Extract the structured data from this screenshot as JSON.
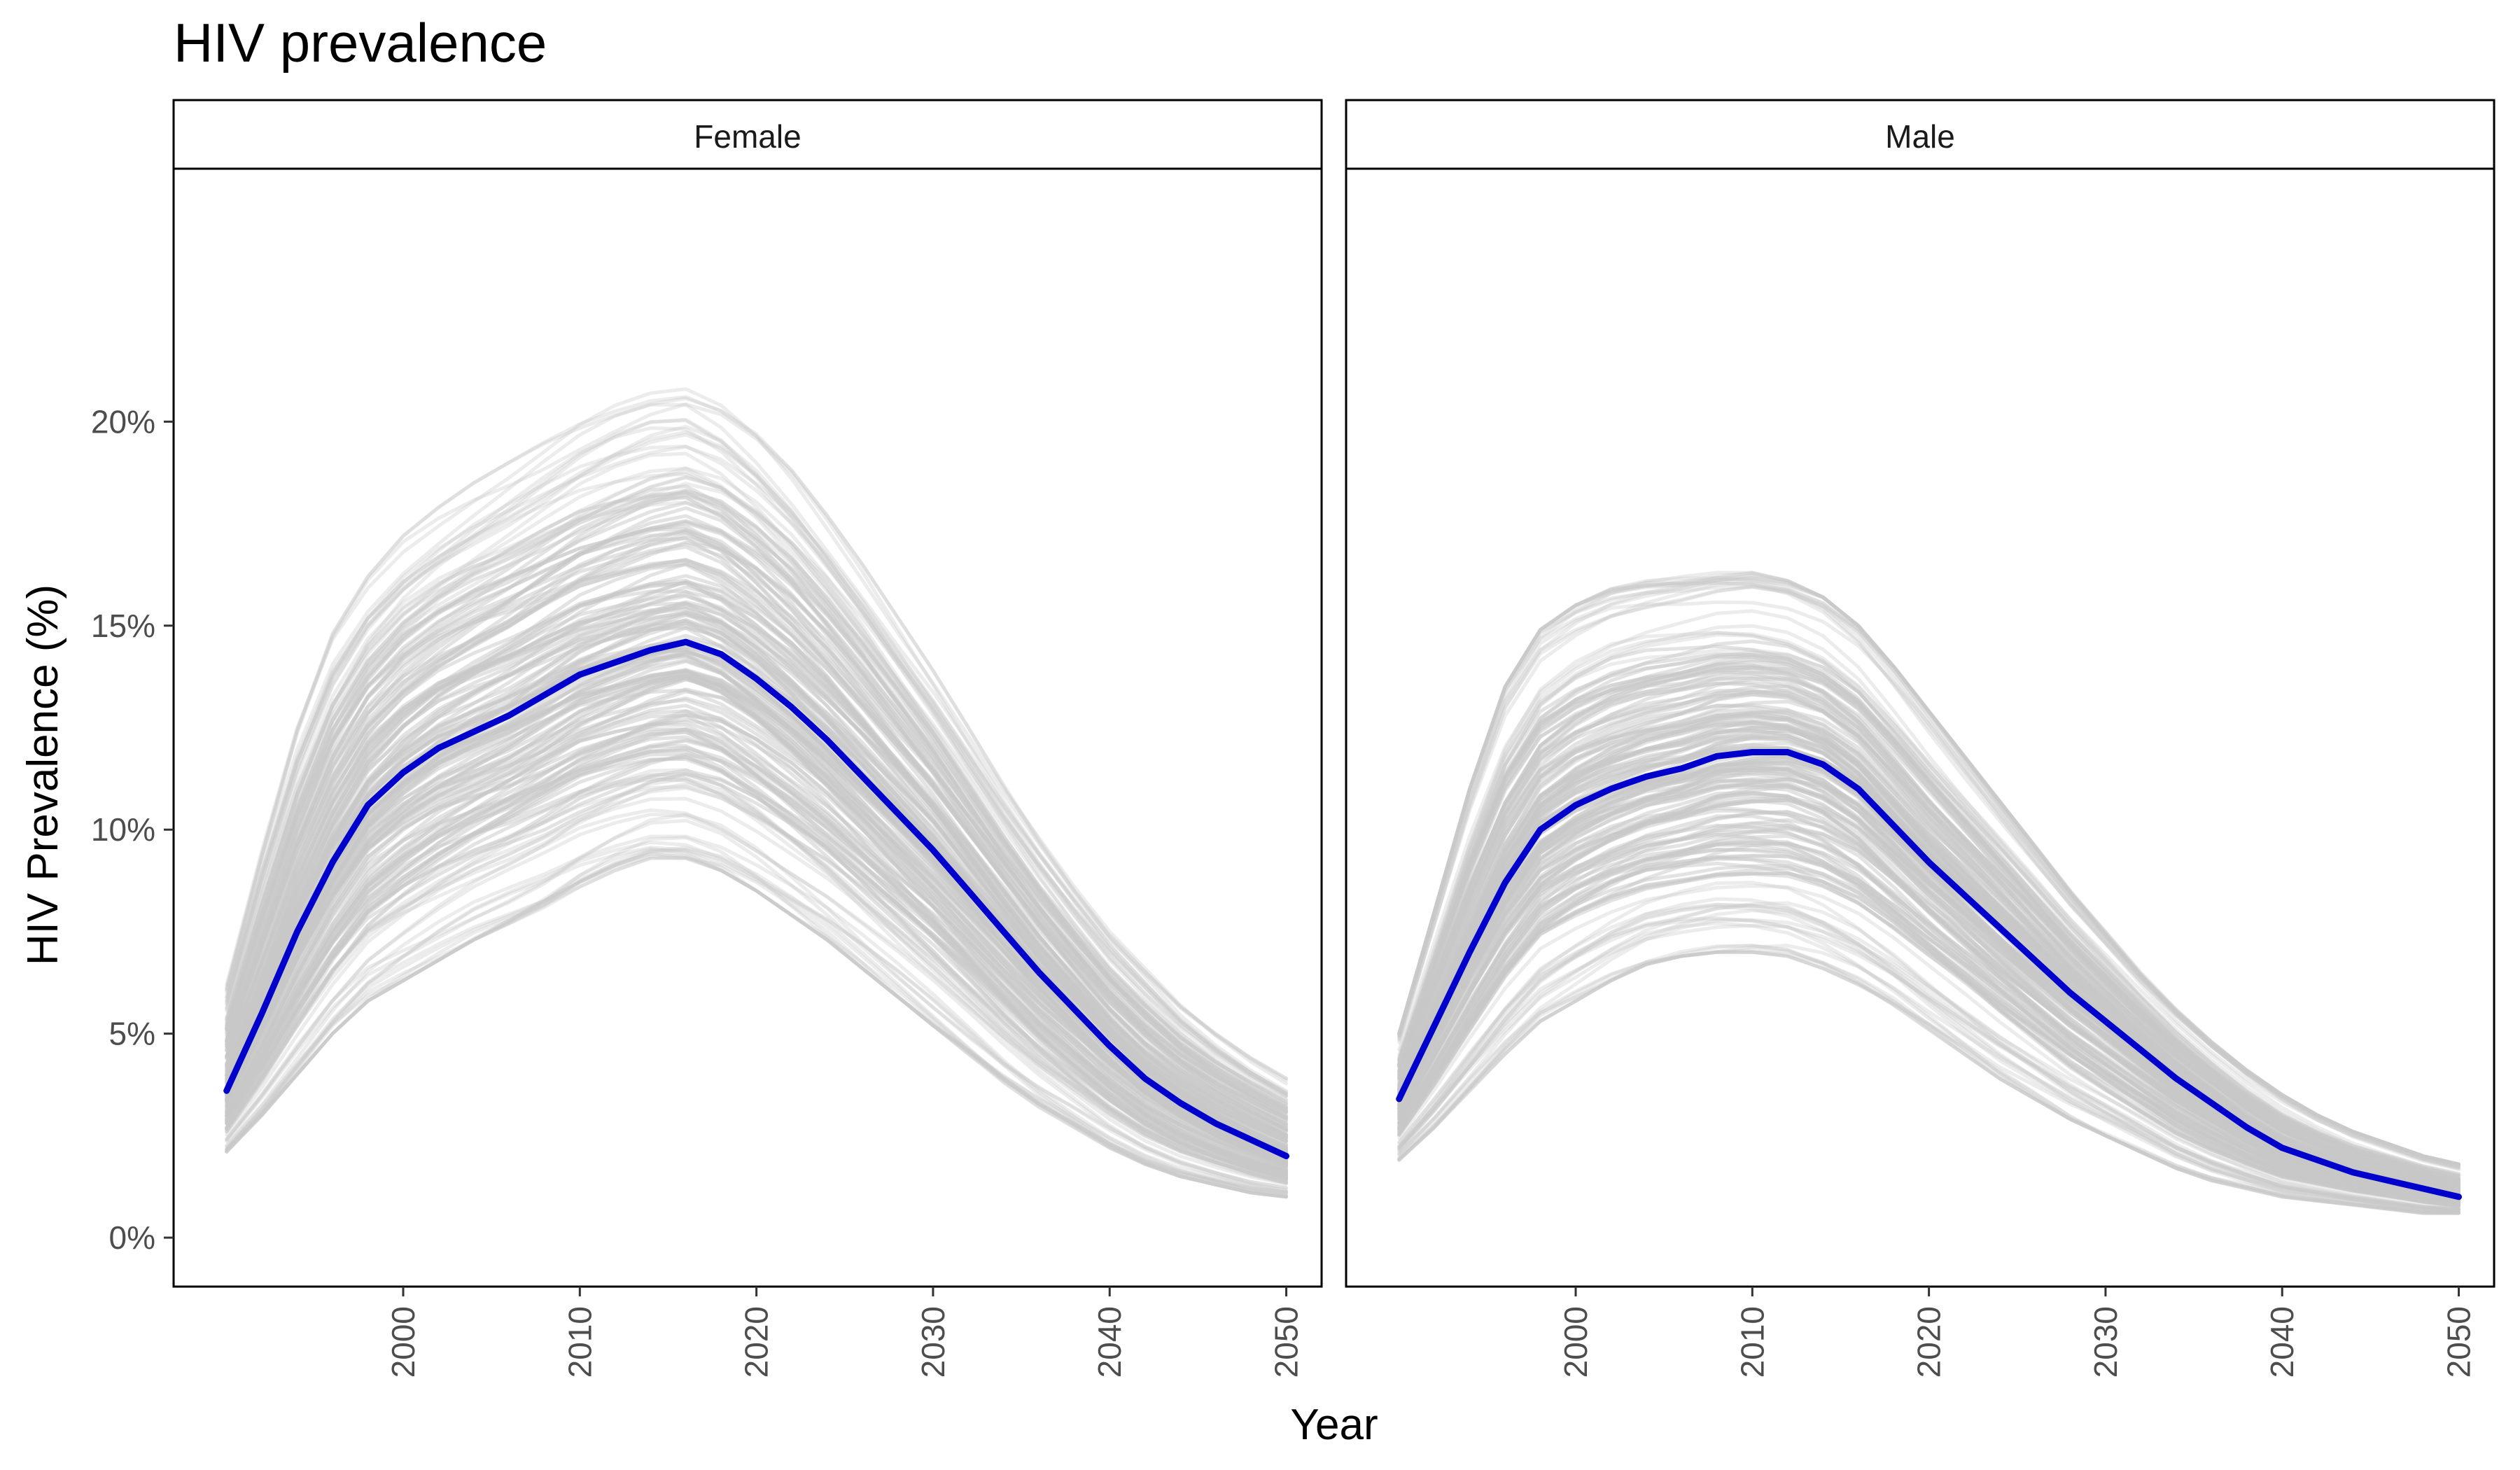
{
  "chart_data": {
    "type": "line",
    "title": "HIV prevalence",
    "xlabel": "Year",
    "ylabel": "HIV Prevalence (%)",
    "x_ticks": [
      2000,
      2010,
      2020,
      2030,
      2040,
      2050
    ],
    "y_ticks": [
      "0%",
      "5%",
      "10%",
      "15%",
      "20%"
    ],
    "y_tick_values": [
      0,
      5,
      10,
      15,
      20
    ],
    "xlim": [
      1987,
      2052
    ],
    "ylim": [
      -1.2,
      26.2
    ],
    "grid": false,
    "colors": {
      "mean_line": "#0000CD",
      "simulation_lines": "#C8C8C8",
      "panel_border": "#000000"
    },
    "simulation_band_note_count": 180,
    "panels": [
      {
        "strip_label": "Female",
        "mean_series": {
          "x": [
            1990,
            1992,
            1994,
            1996,
            1998,
            2000,
            2002,
            2004,
            2006,
            2008,
            2010,
            2012,
            2014,
            2016,
            2018,
            2020,
            2022,
            2024,
            2026,
            2028,
            2030,
            2032,
            2034,
            2036,
            2038,
            2040,
            2042,
            2044,
            2046,
            2048,
            2050
          ],
          "y": [
            3.6,
            5.5,
            7.5,
            9.2,
            10.6,
            11.4,
            12.0,
            12.4,
            12.8,
            13.3,
            13.8,
            14.1,
            14.4,
            14.6,
            14.3,
            13.7,
            13.0,
            12.2,
            11.3,
            10.4,
            9.5,
            8.5,
            7.5,
            6.5,
            5.6,
            4.7,
            3.9,
            3.3,
            2.8,
            2.4,
            2.0
          ]
        },
        "sim_upper_envelope": [
          6.2,
          9.5,
          12.5,
          14.8,
          16.2,
          17.2,
          17.9,
          18.5,
          19.0,
          19.5,
          20.0,
          20.4,
          20.7,
          20.8,
          20.4,
          19.7,
          18.8,
          17.7,
          16.5,
          15.2,
          13.9,
          12.5,
          11.1,
          9.8,
          8.6,
          7.5,
          6.6,
          5.7,
          5.0,
          4.4,
          3.9
        ],
        "sim_lower_envelope": [
          2.1,
          3.0,
          4.0,
          5.0,
          5.8,
          6.3,
          6.8,
          7.3,
          7.7,
          8.1,
          8.6,
          9.0,
          9.3,
          9.3,
          9.0,
          8.5,
          7.9,
          7.3,
          6.6,
          5.9,
          5.2,
          4.5,
          3.8,
          3.2,
          2.7,
          2.2,
          1.8,
          1.5,
          1.3,
          1.1,
          1.0
        ]
      },
      {
        "strip_label": "Male",
        "mean_series": {
          "x": [
            1990,
            1992,
            1994,
            1996,
            1998,
            2000,
            2002,
            2004,
            2006,
            2008,
            2010,
            2012,
            2014,
            2016,
            2018,
            2020,
            2022,
            2024,
            2026,
            2028,
            2030,
            2032,
            2034,
            2036,
            2038,
            2040,
            2042,
            2044,
            2046,
            2048,
            2050
          ],
          "y": [
            3.4,
            5.2,
            7.0,
            8.7,
            10.0,
            10.6,
            11.0,
            11.3,
            11.5,
            11.8,
            11.9,
            11.9,
            11.6,
            11.0,
            10.1,
            9.2,
            8.4,
            7.6,
            6.8,
            6.0,
            5.3,
            4.6,
            3.9,
            3.3,
            2.7,
            2.2,
            1.9,
            1.6,
            1.4,
            1.2,
            1.0
          ]
        },
        "sim_upper_envelope": [
          5.0,
          8.0,
          11.0,
          13.5,
          14.9,
          15.5,
          15.9,
          16.1,
          16.2,
          16.3,
          16.3,
          16.1,
          15.7,
          15.0,
          14.0,
          12.9,
          11.8,
          10.7,
          9.6,
          8.5,
          7.5,
          6.5,
          5.6,
          4.8,
          4.1,
          3.5,
          3.0,
          2.6,
          2.3,
          2.0,
          1.8
        ],
        "sim_lower_envelope": [
          1.9,
          2.7,
          3.6,
          4.5,
          5.3,
          5.8,
          6.3,
          6.7,
          6.9,
          7.0,
          7.0,
          6.9,
          6.6,
          6.2,
          5.7,
          5.1,
          4.5,
          3.9,
          3.4,
          2.9,
          2.5,
          2.1,
          1.7,
          1.4,
          1.2,
          1.0,
          0.9,
          0.8,
          0.7,
          0.6,
          0.6
        ]
      }
    ]
  }
}
